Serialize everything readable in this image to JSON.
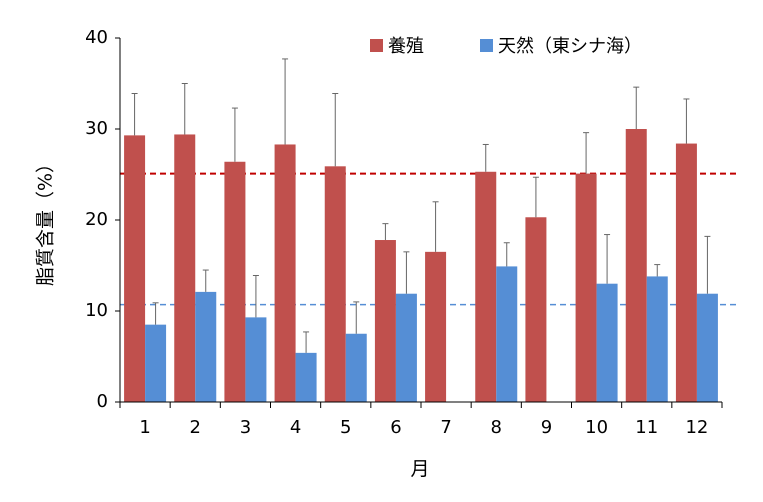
{
  "chart_data": {
    "type": "bar",
    "xlabel": "月",
    "ylabel": "脂質含量（%）",
    "ylim": [
      0,
      40
    ],
    "yticks": [
      0,
      10,
      20,
      30,
      40
    ],
    "categories": [
      "1",
      "2",
      "3",
      "4",
      "5",
      "6",
      "7",
      "8",
      "9",
      "10",
      "11",
      "12"
    ],
    "series": [
      {
        "name": "養殖",
        "color": "#c0504d",
        "values": [
          29.3,
          29.4,
          26.4,
          28.3,
          25.9,
          17.8,
          16.5,
          25.3,
          20.3,
          25.1,
          30.0,
          28.4
        ],
        "error_upper": [
          4.6,
          5.6,
          5.9,
          9.4,
          8.0,
          1.8,
          5.5,
          3.0,
          4.4,
          4.5,
          4.6,
          4.9
        ]
      },
      {
        "name": "天然（東シナ海）",
        "color": "#558ed5",
        "values": [
          8.5,
          12.1,
          9.3,
          5.4,
          7.5,
          11.9,
          null,
          14.9,
          null,
          13.0,
          13.8,
          11.9
        ],
        "error_upper": [
          2.4,
          2.4,
          4.6,
          2.3,
          3.5,
          4.6,
          null,
          2.6,
          null,
          5.4,
          1.3,
          6.3
        ]
      }
    ],
    "reference_lines": [
      {
        "value": 25.1,
        "color": "#c00000",
        "style": "dashed"
      },
      {
        "value": 10.7,
        "color": "#558ed5",
        "style": "dashed"
      }
    ],
    "legend_position": "top-right",
    "grid": false
  }
}
